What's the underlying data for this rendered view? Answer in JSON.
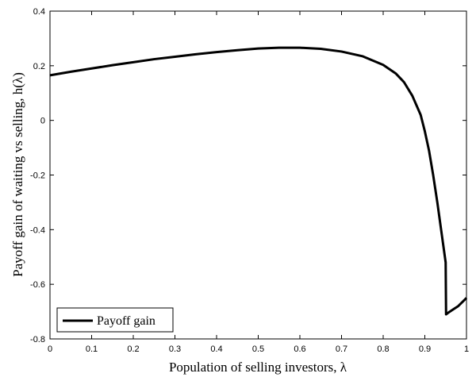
{
  "chart_data": {
    "type": "line",
    "title": "",
    "xlabel": "Population of selling investors, λ",
    "ylabel": "Payoff gain of waiting vs selling, h(λ)",
    "xlim": [
      0,
      1
    ],
    "ylim": [
      -0.8,
      0.4
    ],
    "x_ticks": [
      "0",
      "0.1",
      "0.2",
      "0.3",
      "0.4",
      "0.5",
      "0.6",
      "0.7",
      "0.8",
      "0.9",
      "1"
    ],
    "y_ticks": [
      "0.4",
      "0.2",
      "0",
      "-0.2",
      "-0.4",
      "-0.6",
      "-0.8"
    ],
    "grid": false,
    "legend_position": "bottom-left",
    "series": [
      {
        "name": "Payoff gain",
        "color": "#000000",
        "x": [
          0,
          0.05,
          0.1,
          0.15,
          0.2,
          0.25,
          0.3,
          0.35,
          0.4,
          0.45,
          0.5,
          0.55,
          0.6,
          0.65,
          0.7,
          0.75,
          0.8,
          0.83,
          0.85,
          0.87,
          0.89,
          0.9,
          0.91,
          0.92,
          0.93,
          0.94,
          0.95,
          0.951,
          0.96,
          0.97,
          0.98,
          0.99,
          1.0
        ],
        "y": [
          0.165,
          0.178,
          0.19,
          0.202,
          0.213,
          0.224,
          0.233,
          0.242,
          0.25,
          0.257,
          0.263,
          0.266,
          0.266,
          0.262,
          0.252,
          0.235,
          0.203,
          0.172,
          0.14,
          0.09,
          0.02,
          -0.04,
          -0.11,
          -0.2,
          -0.3,
          -0.41,
          -0.52,
          -0.71,
          -0.7,
          -0.69,
          -0.68,
          -0.665,
          -0.65
        ]
      }
    ]
  }
}
